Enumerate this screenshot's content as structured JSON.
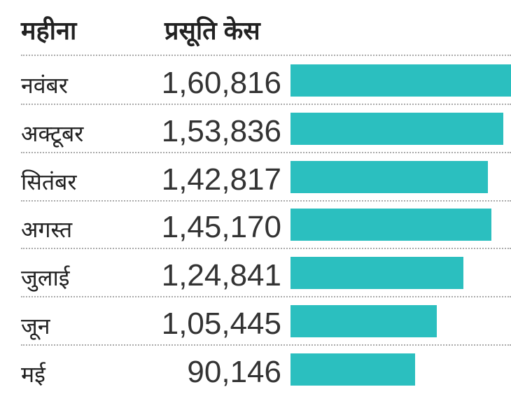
{
  "chart_data": {
    "type": "bar",
    "orientation": "horizontal",
    "column_headers": [
      "महीना",
      "प्रसूति केस"
    ],
    "categories": [
      "नवंबर",
      "अक्टूबर",
      "सितंबर",
      "अगस्त",
      "जुलाई",
      "जून",
      "मई"
    ],
    "values": [
      160816,
      153836,
      142817,
      145170,
      124841,
      105445,
      90146
    ],
    "value_labels": [
      "1,60,816",
      "1,53,836",
      "1,42,817",
      "1,45,170",
      "1,24,841",
      "1,05,445",
      "90,146"
    ],
    "bar_color": "#2bbfbf",
    "grid": false
  }
}
